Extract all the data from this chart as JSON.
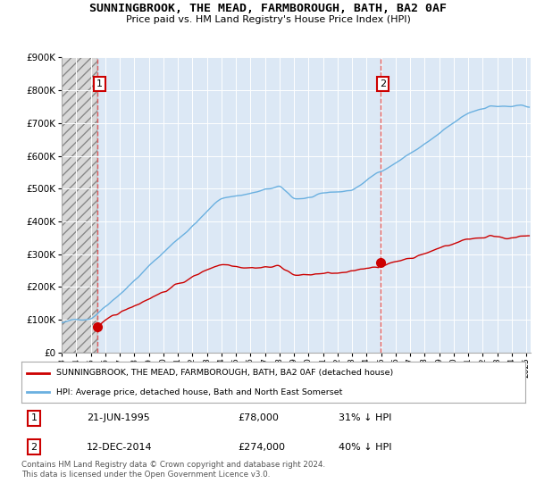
{
  "title": "SUNNINGBROOK, THE MEAD, FARMBOROUGH, BATH, BA2 0AF",
  "subtitle": "Price paid vs. HM Land Registry's House Price Index (HPI)",
  "ylim": [
    0,
    900000
  ],
  "xlim_start": 1993.0,
  "xlim_end": 2025.3,
  "sale1_date": 1995.47,
  "sale1_price": 78000,
  "sale1_label": "1",
  "sale2_date": 2014.95,
  "sale2_price": 274000,
  "sale2_label": "2",
  "hpi_color": "#6ab0e0",
  "price_color": "#cc0000",
  "vline_color": "#e05050",
  "legend_text1": "SUNNINGBROOK, THE MEAD, FARMBOROUGH, BATH, BA2 0AF (detached house)",
  "legend_text2": "HPI: Average price, detached house, Bath and North East Somerset",
  "table_row1": [
    "1",
    "21-JUN-1995",
    "£78,000",
    "31% ↓ HPI"
  ],
  "table_row2": [
    "2",
    "12-DEC-2014",
    "£274,000",
    "40% ↓ HPI"
  ],
  "footer": "Contains HM Land Registry data © Crown copyright and database right 2024.\nThis data is licensed under the Open Government Licence v3.0.",
  "plot_bg": "#dce8f5",
  "hatch_bg": "#d8d8d8"
}
